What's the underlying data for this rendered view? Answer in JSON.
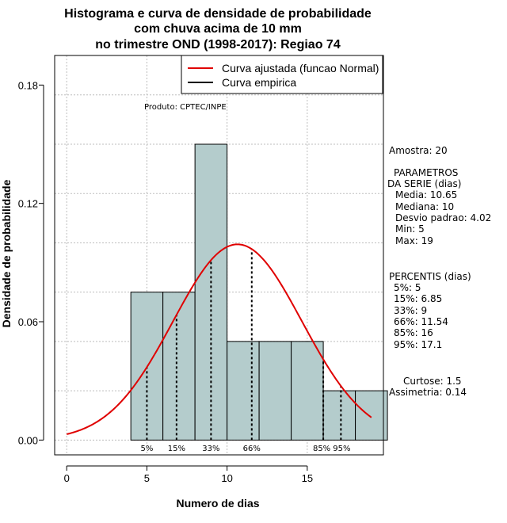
{
  "chart_data": {
    "type": "bar",
    "title_lines": [
      "Histograma e curva de densidade de probabilidade",
      "com chuva acima de 10 mm",
      "no trimestre OND (1998-2017): Regiao 74"
    ],
    "xlabel": "Numero de dias",
    "ylabel": "Densidade de probabilidade",
    "xlim": [
      -0.75,
      19.75
    ],
    "ylim": [
      -0.0075,
      0.195
    ],
    "x_ticks": [
      "0",
      "5",
      "10",
      "15"
    ],
    "x_tick_values": [
      0,
      5,
      10,
      15
    ],
    "y_ticks": [
      "0.00",
      "0.06",
      "0.12",
      "0.18"
    ],
    "y_tick_values": [
      0,
      0.06,
      0.12,
      0.18
    ],
    "grid": true,
    "bins": [
      {
        "start": 4,
        "end": 6,
        "density": 0.075
      },
      {
        "start": 6,
        "end": 8,
        "density": 0.075
      },
      {
        "start": 8,
        "end": 10,
        "density": 0.15
      },
      {
        "start": 10,
        "end": 12,
        "density": 0.05
      },
      {
        "start": 12,
        "end": 14,
        "density": 0.05
      },
      {
        "start": 14,
        "end": 16,
        "density": 0.05
      },
      {
        "start": 16,
        "end": 18,
        "density": 0.025
      },
      {
        "start": 18,
        "end": 20,
        "density": 0.025
      }
    ],
    "bar_color": "#b4cccc",
    "fitted_curve": {
      "mean": 10.65,
      "sd": 4.02,
      "x_from": 0,
      "x_to": 19,
      "color": "#e00000"
    },
    "percentile_lines": [
      {
        "label": "5%",
        "x": 5
      },
      {
        "label": "15%",
        "x": 6.85
      },
      {
        "label": "33%",
        "x": 9
      },
      {
        "label": "66%",
        "x": 11.54
      },
      {
        "label": "85%",
        "x": 16
      },
      {
        "label": "95%",
        "x": 17.1
      }
    ],
    "legend": {
      "placement": "top-right",
      "entries": [
        {
          "label": "Curva ajustada (funcao Normal)",
          "color": "#e00000"
        },
        {
          "label": "Curva empirica",
          "color": "#000000"
        }
      ]
    },
    "annotation": "Produto: CPTEC/INPE",
    "stats": {
      "amostra": "Amostra: 20",
      "parametros": [
        "PARAMETROS",
        "DA SERIE (dias)",
        "Media: 10.65",
        "Mediana: 10",
        "Desvio padrao: 4.02",
        "Min: 5",
        "Max: 19"
      ],
      "percentis": [
        "PERCENTIS (dias)",
        "5%: 5",
        "15%: 6.85",
        "33%: 9",
        "66%: 11.54",
        "85%: 16",
        "95%: 17.1"
      ],
      "curtose": "Curtose: 1.5",
      "assimetria": "Assimetria: 0.14"
    }
  }
}
